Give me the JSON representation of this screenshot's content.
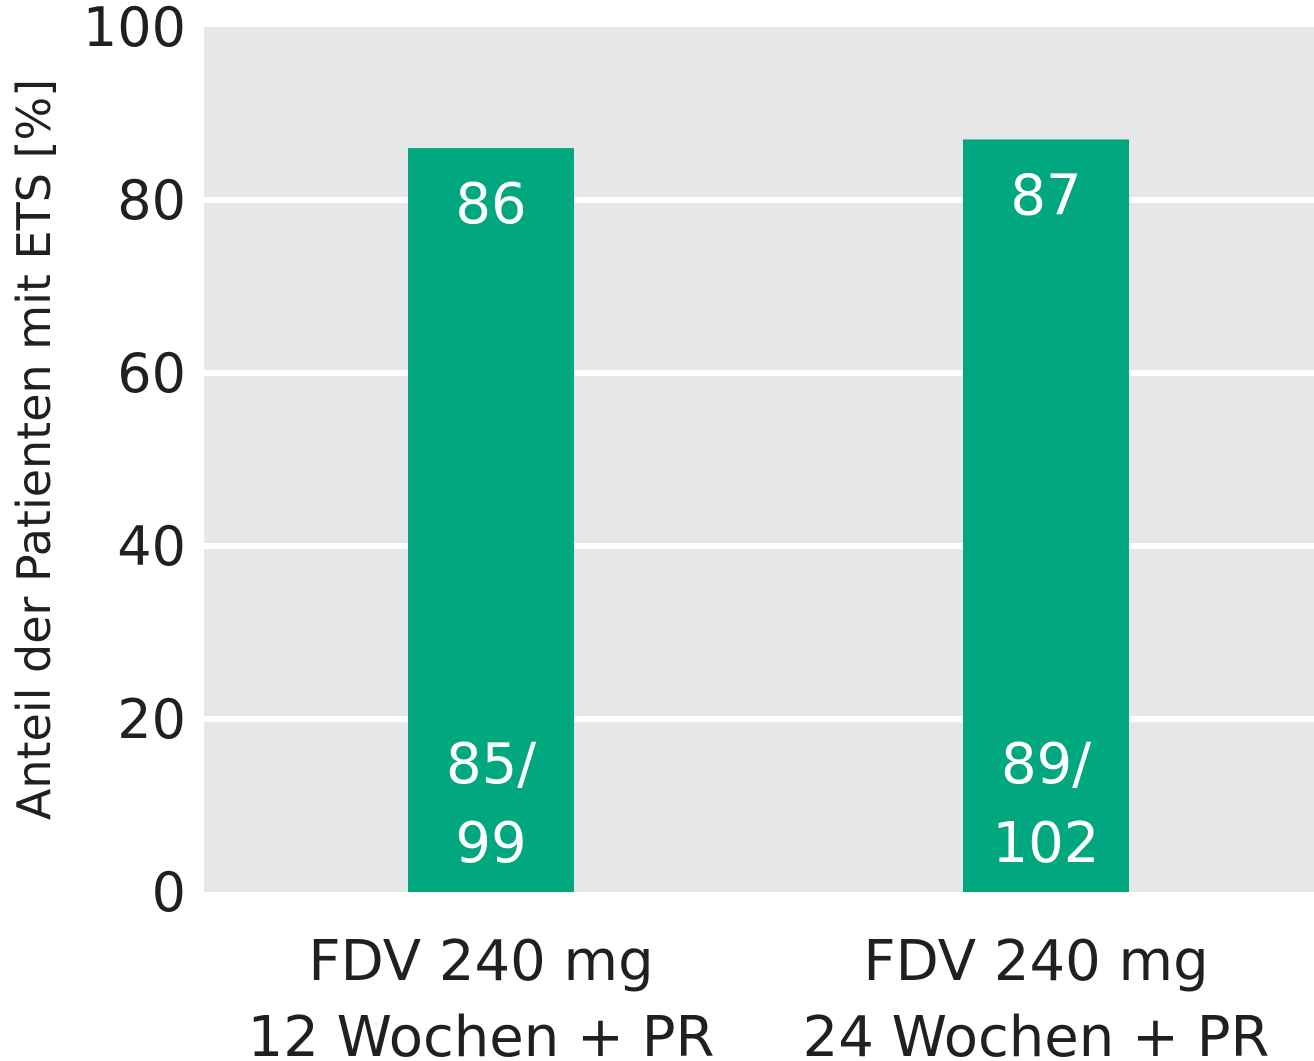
{
  "chart_data": {
    "type": "bar",
    "ylabel": "Anteil der Patienten mit ETS [%]",
    "xlabel": "",
    "ylim": [
      0,
      100
    ],
    "yticks": [
      0,
      20,
      40,
      60,
      80,
      100
    ],
    "grid": true,
    "categories": [
      {
        "line1": "FDV 240 mg",
        "line2": "12 Wochen + PR"
      },
      {
        "line1": "FDV 240 mg",
        "line2": "24 Wochen + PR"
      }
    ],
    "values": [
      86,
      87
    ],
    "count_labels": [
      {
        "line1": "85/",
        "line2": "99"
      },
      {
        "line1": "89/",
        "line2": "102"
      }
    ],
    "colors": {
      "bar": "#00a77f",
      "plot_bg": "#e6e7e8",
      "grid": "#ffffff"
    }
  }
}
